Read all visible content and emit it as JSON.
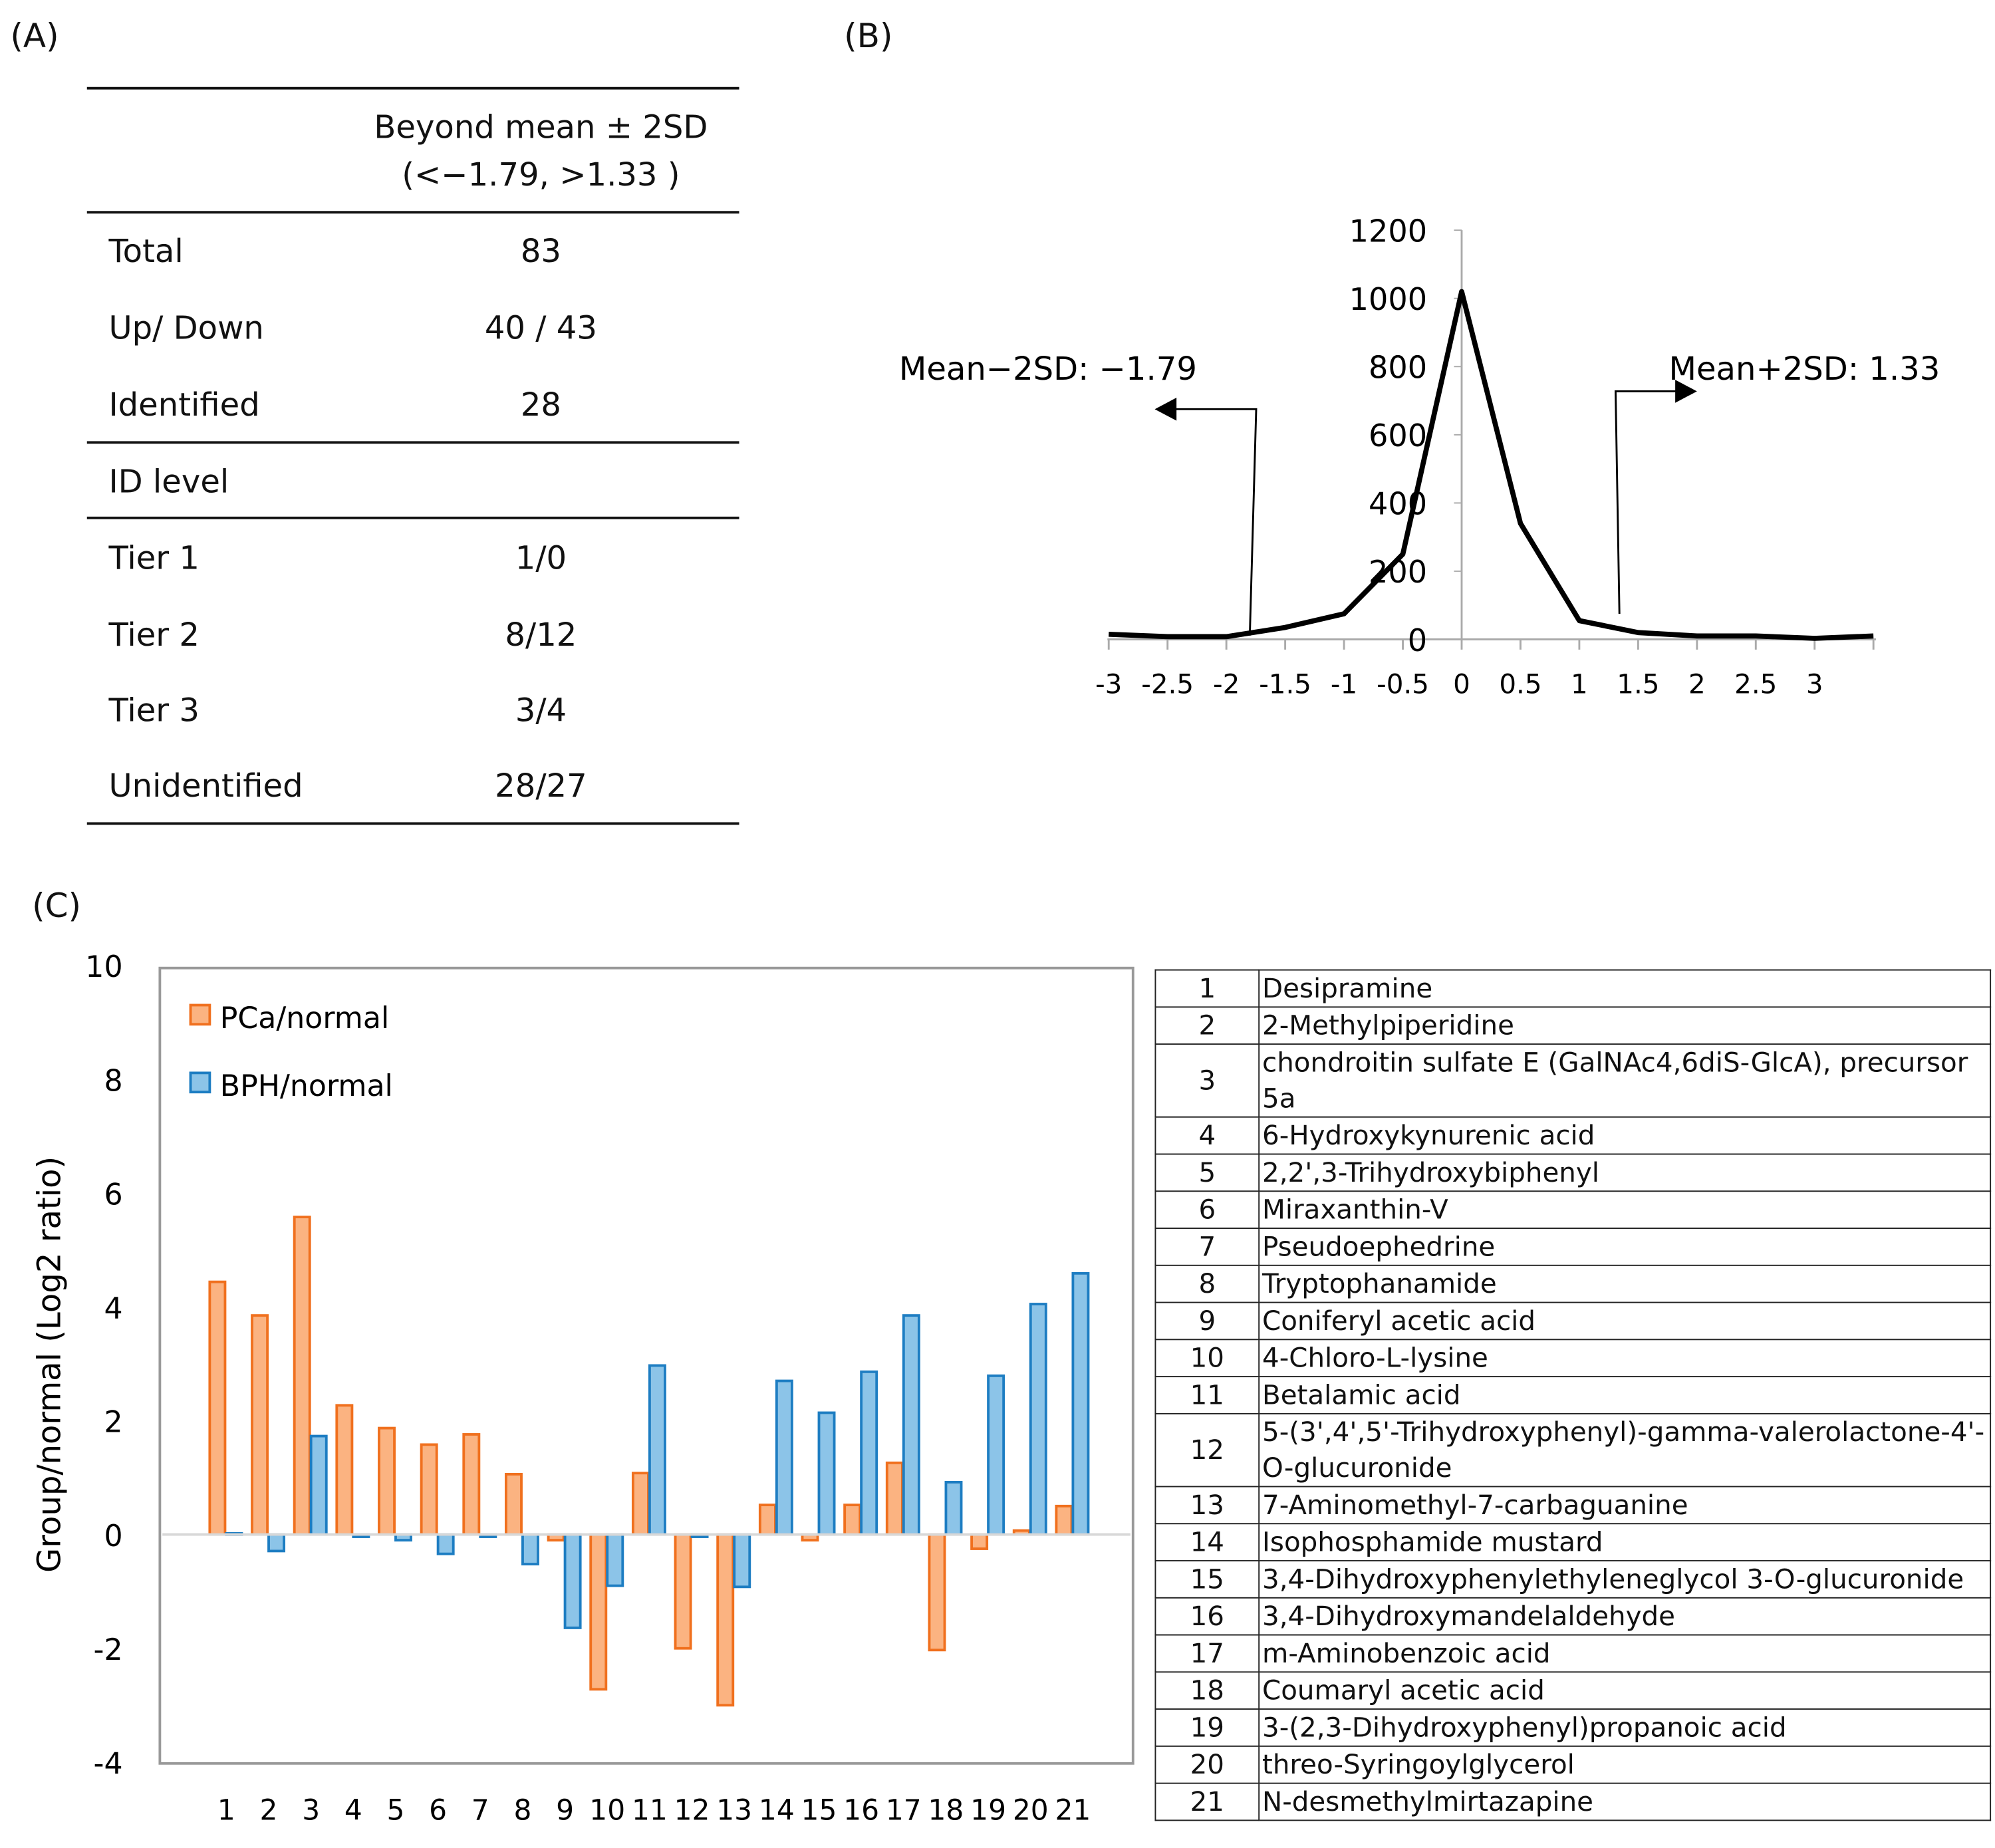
{
  "panels": {
    "a": "(A)",
    "b": "(B)",
    "c": "(C)"
  },
  "table_a": {
    "header": [
      "Beyond mean ± 2SD",
      "(<−1.79, >1.33 )"
    ],
    "rows": [
      {
        "label": "Total",
        "value": "83"
      },
      {
        "label": "Up/ Down",
        "value": "40 / 43"
      },
      {
        "label": "Identified",
        "value": "28"
      },
      {
        "label": "ID level",
        "value": ""
      },
      {
        "label": "Tier 1",
        "value": "1/0"
      },
      {
        "label": "Tier 2",
        "value": "8/12"
      },
      {
        "label": "Tier 3",
        "value": "3/4"
      },
      {
        "label": "Unidentified",
        "value": "28/27"
      }
    ]
  },
  "chart_data": [
    {
      "type": "line",
      "x": [
        -3,
        -2.5,
        -2,
        -1.5,
        -1,
        -0.5,
        0,
        0.5,
        1,
        1.5,
        2,
        2.5,
        3,
        3.5
      ],
      "y": [
        15,
        8,
        8,
        35,
        75,
        250,
        1020,
        340,
        55,
        20,
        10,
        10,
        3,
        10
      ],
      "x_tick_labels": [
        "-3",
        "-2.5",
        "-2",
        "-1.5",
        "-1",
        "-0.5",
        "0",
        "0.5",
        "1",
        "1.5",
        "2",
        "2.5",
        "3"
      ],
      "y_tick_labels": [
        "0",
        "200",
        "400",
        "600",
        "800",
        "1000",
        "1200"
      ],
      "ylim": [
        0,
        1200
      ],
      "xlim": [
        -3,
        3.5
      ],
      "grid": false,
      "color": "#000000",
      "annotations": [
        {
          "text": "Mean−2SD: −1.79",
          "x": -1.79,
          "direction": "left"
        },
        {
          "text": "Mean+2SD: 1.33",
          "x": 1.33,
          "direction": "right"
        }
      ]
    },
    {
      "type": "bar",
      "categories": [
        "1",
        "2",
        "3",
        "4",
        "5",
        "6",
        "7",
        "8",
        "9",
        "10",
        "11",
        "12",
        "13",
        "14",
        "15",
        "16",
        "17",
        "18",
        "19",
        "20",
        "21"
      ],
      "series": [
        {
          "name": "PCa/normal",
          "color": "#f0701e",
          "fill": "#fbb381",
          "values": [
            4.44,
            3.85,
            5.58,
            2.27,
            1.87,
            1.58,
            1.76,
            1.06,
            -0.1,
            -2.72,
            1.08,
            -2.0,
            -3.0,
            0.52,
            -0.1,
            0.52,
            1.26,
            -2.03,
            -0.25,
            0.07,
            0.5
          ]
        },
        {
          "name": "BPH/normal",
          "color": "#1d7dc2",
          "fill": "#8cc4e8",
          "values": [
            0.02,
            -0.29,
            1.73,
            -0.04,
            -0.1,
            -0.34,
            -0.04,
            -0.52,
            -1.64,
            -0.9,
            2.97,
            -0.04,
            -0.92,
            2.7,
            2.14,
            2.86,
            3.85,
            0.92,
            2.79,
            4.05,
            4.59
          ]
        }
      ],
      "ylabel": "Group/normal (Log2 ratio)",
      "y_tick_labels": [
        "-4",
        "-2",
        "0",
        "2",
        "4",
        "6",
        "8",
        "10"
      ],
      "ylim": [
        -4,
        10
      ],
      "grid": false,
      "legend": "top-left"
    }
  ],
  "compounds": [
    {
      "n": "1",
      "name": "Desipramine"
    },
    {
      "n": "2",
      "name": "2-Methylpiperidine"
    },
    {
      "n": "3",
      "name": "chondroitin sulfate E (GalNAc4,6diS-GlcA), precursor 5a"
    },
    {
      "n": "4",
      "name": "6-Hydroxykynurenic acid"
    },
    {
      "n": "5",
      "name": "2,2',3-Trihydroxybiphenyl"
    },
    {
      "n": "6",
      "name": "Miraxanthin-V"
    },
    {
      "n": "7",
      "name": "Pseudoephedrine"
    },
    {
      "n": "8",
      "name": "Tryptophanamide"
    },
    {
      "n": "9",
      "name": "Coniferyl acetic acid"
    },
    {
      "n": "10",
      "name": "4-Chloro-L-lysine"
    },
    {
      "n": "11",
      "name": "Betalamic acid"
    },
    {
      "n": "12",
      "name": "5-(3',4',5'-Trihydroxyphenyl)-gamma-valerolactone-4'-O-glucuronide"
    },
    {
      "n": "13",
      "name": "7-Aminomethyl-7-carbaguanine"
    },
    {
      "n": "14",
      "name": "Isophosphamide mustard"
    },
    {
      "n": "15",
      "name": "3,4-Dihydroxyphenylethyleneglycol 3-O-glucuronide"
    },
    {
      "n": "16",
      "name": "3,4-Dihydroxymandelaldehyde"
    },
    {
      "n": "17",
      "name": "m-Aminobenzoic acid"
    },
    {
      "n": "18",
      "name": "Coumaryl acetic acid"
    },
    {
      "n": "19",
      "name": "3-(2,3-Dihydroxyphenyl)propanoic acid"
    },
    {
      "n": "20",
      "name": "threo-Syringoylglycerol"
    },
    {
      "n": "21",
      "name": "N-desmethylmirtazapine"
    }
  ]
}
